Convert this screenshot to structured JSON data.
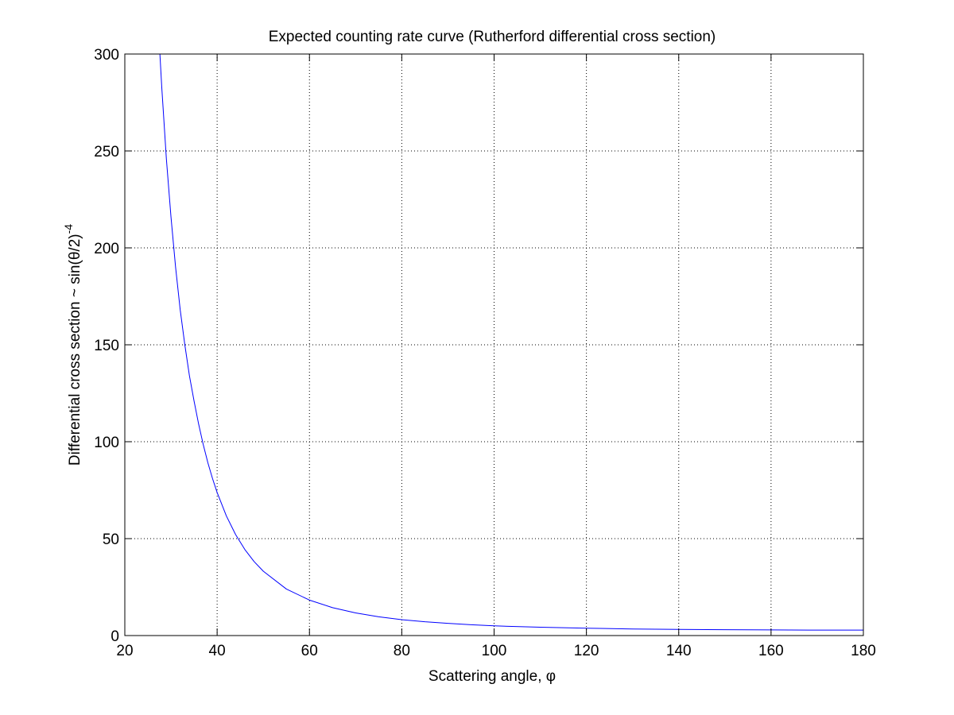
{
  "chart_data": {
    "type": "line",
    "title": "Expected counting rate curve (Rutherford differential cross section)",
    "xlabel_text": "Scattering angle, ",
    "xlabel_symbol": "φ",
    "ylabel_text": "Differential cross section ~ sin(",
    "ylabel_symbol": "θ",
    "ylabel_suffix": "/2)",
    "ylabel_exponent": "-4",
    "xlim": [
      20,
      180
    ],
    "ylim": [
      0,
      300
    ],
    "xticks": [
      "20",
      "40",
      "60",
      "80",
      "100",
      "120",
      "140",
      "160",
      "180"
    ],
    "yticks": [
      "0",
      "50",
      "100",
      "150",
      "200",
      "250",
      "300"
    ],
    "grid": true,
    "series": [
      {
        "color": "#0000ff",
        "x": [
          27.6,
          28,
          29,
          30,
          31,
          32,
          33,
          34,
          35,
          36,
          37,
          38,
          39,
          40,
          42,
          44,
          46,
          48,
          50,
          55,
          60,
          65,
          70,
          75,
          80,
          85,
          90,
          95,
          100,
          110,
          120,
          130,
          140,
          150,
          160,
          170,
          180
        ],
        "y": [
          300,
          283,
          246,
          216,
          190,
          168,
          150,
          134,
          121,
          109,
          98.4,
          89.1,
          81.0,
          73.8,
          61.7,
          52.1,
          44.4,
          38.2,
          33.2,
          24.0,
          18.3,
          14.4,
          11.7,
          9.7,
          8.2,
          7.1,
          6.3,
          5.6,
          5.0,
          4.3,
          3.8,
          3.4,
          3.2,
          3.0,
          2.9,
          2.8,
          2.8
        ]
      }
    ]
  }
}
